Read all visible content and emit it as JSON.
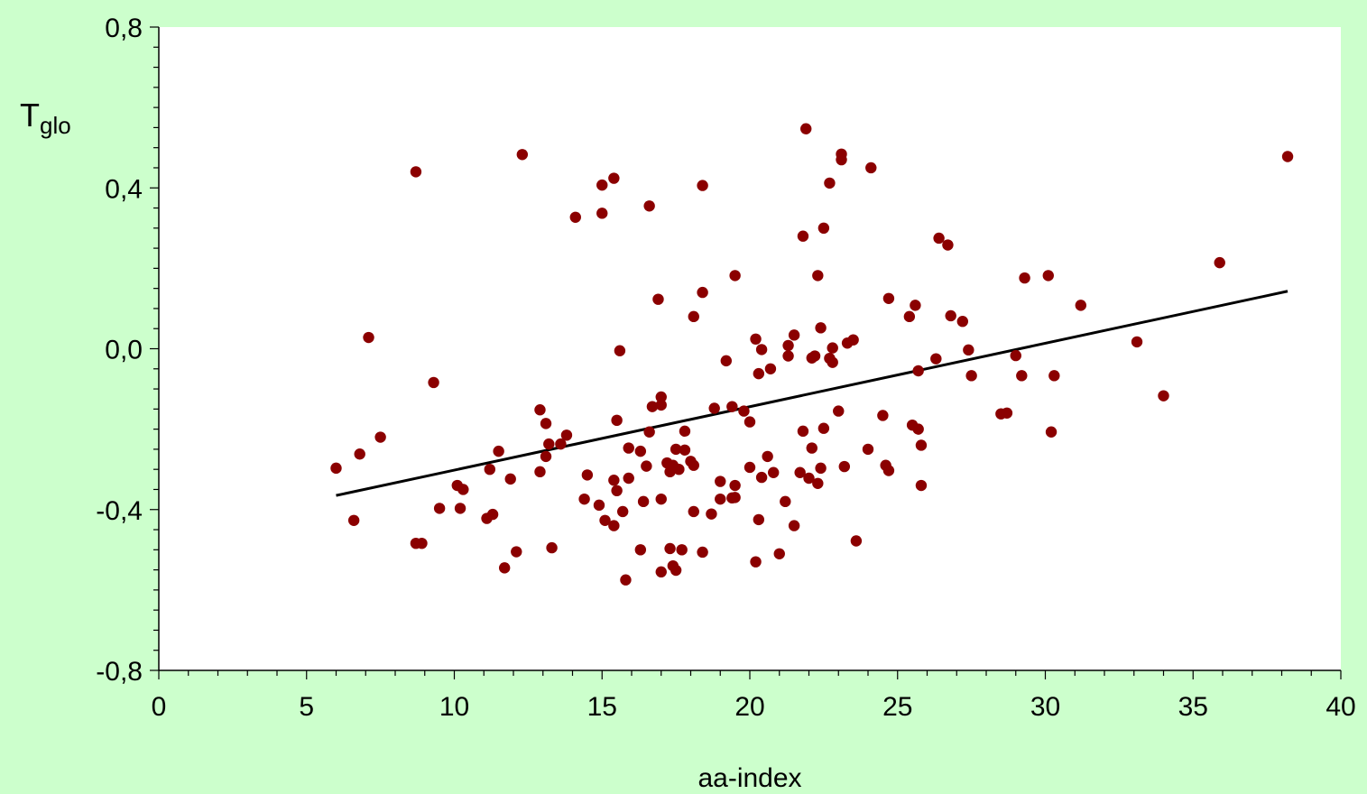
{
  "chart_data": {
    "type": "scatter",
    "xlabel": "aa-index",
    "ylabel_main": "T",
    "ylabel_sub": "glo",
    "xlim": [
      0,
      40
    ],
    "ylim": [
      -0.8,
      0.8
    ],
    "x_ticks": [
      0,
      5,
      10,
      15,
      20,
      25,
      30,
      35,
      40
    ],
    "x_tick_labels": [
      "0",
      "5",
      "10",
      "15",
      "20",
      "25",
      "30",
      "35",
      "40"
    ],
    "y_ticks": [
      -0.8,
      -0.4,
      0.0,
      0.4,
      0.8
    ],
    "y_tick_labels": [
      "-0,8",
      "-0,4",
      "0,0",
      "0,4",
      "0,8"
    ],
    "grid": false,
    "colors": {
      "point": "#8b0000",
      "trend": "#000000",
      "plot_bg": "#ffffff",
      "page_bg": "#ccffcc"
    },
    "trendline": {
      "x": [
        6.0,
        38.2
      ],
      "y": [
        -0.365,
        0.143
      ]
    },
    "points": [
      {
        "x": 6.0,
        "y": -0.297
      },
      {
        "x": 6.6,
        "y": -0.427
      },
      {
        "x": 6.8,
        "y": -0.262
      },
      {
        "x": 7.1,
        "y": 0.028
      },
      {
        "x": 7.5,
        "y": -0.22
      },
      {
        "x": 8.7,
        "y": 0.44
      },
      {
        "x": 8.7,
        "y": -0.484
      },
      {
        "x": 8.9,
        "y": -0.484
      },
      {
        "x": 9.3,
        "y": -0.084
      },
      {
        "x": 9.5,
        "y": -0.397
      },
      {
        "x": 10.1,
        "y": -0.34
      },
      {
        "x": 10.2,
        "y": -0.397
      },
      {
        "x": 10.3,
        "y": -0.35
      },
      {
        "x": 11.1,
        "y": -0.422
      },
      {
        "x": 11.2,
        "y": -0.3
      },
      {
        "x": 11.3,
        "y": -0.412
      },
      {
        "x": 11.5,
        "y": -0.255
      },
      {
        "x": 11.7,
        "y": -0.545
      },
      {
        "x": 11.9,
        "y": -0.324
      },
      {
        "x": 12.1,
        "y": -0.505
      },
      {
        "x": 12.3,
        "y": 0.483
      },
      {
        "x": 12.9,
        "y": -0.152
      },
      {
        "x": 12.9,
        "y": -0.306
      },
      {
        "x": 13.1,
        "y": -0.186
      },
      {
        "x": 13.1,
        "y": -0.268
      },
      {
        "x": 13.2,
        "y": -0.237
      },
      {
        "x": 13.3,
        "y": -0.495
      },
      {
        "x": 13.6,
        "y": -0.237
      },
      {
        "x": 13.8,
        "y": -0.215
      },
      {
        "x": 14.1,
        "y": 0.327
      },
      {
        "x": 14.4,
        "y": -0.374
      },
      {
        "x": 14.5,
        "y": -0.314
      },
      {
        "x": 14.9,
        "y": -0.389
      },
      {
        "x": 15.0,
        "y": 0.337
      },
      {
        "x": 15.0,
        "y": 0.407
      },
      {
        "x": 15.1,
        "y": -0.427
      },
      {
        "x": 15.4,
        "y": 0.424
      },
      {
        "x": 15.4,
        "y": -0.327
      },
      {
        "x": 15.4,
        "y": -0.44
      },
      {
        "x": 15.5,
        "y": -0.178
      },
      {
        "x": 15.5,
        "y": -0.353
      },
      {
        "x": 15.6,
        "y": -0.005
      },
      {
        "x": 15.7,
        "y": -0.405
      },
      {
        "x": 15.8,
        "y": -0.575
      },
      {
        "x": 15.9,
        "y": -0.322
      },
      {
        "x": 15.9,
        "y": -0.247
      },
      {
        "x": 16.3,
        "y": -0.255
      },
      {
        "x": 16.3,
        "y": -0.5
      },
      {
        "x": 16.4,
        "y": -0.38
      },
      {
        "x": 16.5,
        "y": -0.292
      },
      {
        "x": 16.6,
        "y": 0.355
      },
      {
        "x": 16.6,
        "y": -0.207
      },
      {
        "x": 16.7,
        "y": -0.144
      },
      {
        "x": 16.9,
        "y": 0.123
      },
      {
        "x": 17.0,
        "y": -0.12
      },
      {
        "x": 17.0,
        "y": -0.14
      },
      {
        "x": 17.0,
        "y": -0.374
      },
      {
        "x": 17.0,
        "y": -0.555
      },
      {
        "x": 17.2,
        "y": -0.284
      },
      {
        "x": 17.3,
        "y": -0.306
      },
      {
        "x": 17.3,
        "y": -0.497
      },
      {
        "x": 17.4,
        "y": -0.29
      },
      {
        "x": 17.4,
        "y": -0.54
      },
      {
        "x": 17.5,
        "y": -0.25
      },
      {
        "x": 17.5,
        "y": -0.551
      },
      {
        "x": 17.6,
        "y": -0.3
      },
      {
        "x": 17.7,
        "y": -0.5
      },
      {
        "x": 17.8,
        "y": -0.252
      },
      {
        "x": 17.8,
        "y": -0.205
      },
      {
        "x": 18.0,
        "y": -0.28
      },
      {
        "x": 18.1,
        "y": -0.29
      },
      {
        "x": 18.1,
        "y": 0.08
      },
      {
        "x": 18.1,
        "y": -0.405
      },
      {
        "x": 18.4,
        "y": 0.406
      },
      {
        "x": 18.4,
        "y": 0.14
      },
      {
        "x": 18.4,
        "y": -0.506
      },
      {
        "x": 18.7,
        "y": -0.411
      },
      {
        "x": 18.8,
        "y": -0.148
      },
      {
        "x": 19.0,
        "y": -0.374
      },
      {
        "x": 19.0,
        "y": -0.33
      },
      {
        "x": 19.2,
        "y": -0.03
      },
      {
        "x": 19.4,
        "y": -0.144
      },
      {
        "x": 19.4,
        "y": -0.371
      },
      {
        "x": 19.5,
        "y": 0.182
      },
      {
        "x": 19.5,
        "y": -0.37
      },
      {
        "x": 19.5,
        "y": -0.34
      },
      {
        "x": 19.8,
        "y": -0.155
      },
      {
        "x": 20.0,
        "y": -0.182
      },
      {
        "x": 20.0,
        "y": -0.295
      },
      {
        "x": 20.2,
        "y": -0.53
      },
      {
        "x": 20.2,
        "y": 0.024
      },
      {
        "x": 20.3,
        "y": -0.425
      },
      {
        "x": 20.3,
        "y": -0.062
      },
      {
        "x": 20.4,
        "y": -0.002
      },
      {
        "x": 20.4,
        "y": -0.32
      },
      {
        "x": 20.6,
        "y": -0.268
      },
      {
        "x": 20.7,
        "y": -0.05
      },
      {
        "x": 20.8,
        "y": -0.308
      },
      {
        "x": 21.0,
        "y": -0.51
      },
      {
        "x": 21.2,
        "y": -0.38
      },
      {
        "x": 21.3,
        "y": 0.008
      },
      {
        "x": 21.3,
        "y": -0.018
      },
      {
        "x": 21.5,
        "y": 0.034
      },
      {
        "x": 21.5,
        "y": -0.44
      },
      {
        "x": 21.7,
        "y": -0.308
      },
      {
        "x": 21.8,
        "y": 0.28
      },
      {
        "x": 21.8,
        "y": -0.205
      },
      {
        "x": 21.9,
        "y": 0.547
      },
      {
        "x": 22.0,
        "y": -0.322
      },
      {
        "x": 22.1,
        "y": -0.023
      },
      {
        "x": 22.1,
        "y": -0.247
      },
      {
        "x": 22.2,
        "y": -0.018
      },
      {
        "x": 22.3,
        "y": 0.182
      },
      {
        "x": 22.3,
        "y": -0.335
      },
      {
        "x": 22.4,
        "y": 0.052
      },
      {
        "x": 22.4,
        "y": -0.297
      },
      {
        "x": 22.5,
        "y": 0.3
      },
      {
        "x": 22.5,
        "y": -0.198
      },
      {
        "x": 22.7,
        "y": 0.412
      },
      {
        "x": 22.7,
        "y": -0.024
      },
      {
        "x": 22.8,
        "y": -0.034
      },
      {
        "x": 22.8,
        "y": 0.002
      },
      {
        "x": 23.0,
        "y": -0.155
      },
      {
        "x": 23.1,
        "y": 0.47
      },
      {
        "x": 23.1,
        "y": 0.484
      },
      {
        "x": 23.2,
        "y": -0.293
      },
      {
        "x": 23.3,
        "y": 0.014
      },
      {
        "x": 23.5,
        "y": 0.022
      },
      {
        "x": 23.6,
        "y": -0.478
      },
      {
        "x": 24.0,
        "y": -0.25
      },
      {
        "x": 24.1,
        "y": 0.45
      },
      {
        "x": 24.5,
        "y": -0.166
      },
      {
        "x": 24.6,
        "y": -0.29
      },
      {
        "x": 24.7,
        "y": 0.125
      },
      {
        "x": 24.7,
        "y": -0.303
      },
      {
        "x": 25.4,
        "y": 0.08
      },
      {
        "x": 25.5,
        "y": -0.19
      },
      {
        "x": 25.6,
        "y": 0.108
      },
      {
        "x": 25.7,
        "y": -0.2
      },
      {
        "x": 25.7,
        "y": -0.055
      },
      {
        "x": 25.8,
        "y": -0.24
      },
      {
        "x": 25.8,
        "y": -0.34
      },
      {
        "x": 26.3,
        "y": -0.025
      },
      {
        "x": 26.4,
        "y": 0.275
      },
      {
        "x": 26.7,
        "y": 0.258
      },
      {
        "x": 26.8,
        "y": 0.082
      },
      {
        "x": 27.2,
        "y": 0.068
      },
      {
        "x": 27.4,
        "y": -0.003
      },
      {
        "x": 27.5,
        "y": -0.067
      },
      {
        "x": 28.5,
        "y": -0.162
      },
      {
        "x": 28.7,
        "y": -0.16
      },
      {
        "x": 29.0,
        "y": -0.017
      },
      {
        "x": 29.2,
        "y": -0.067
      },
      {
        "x": 29.3,
        "y": 0.176
      },
      {
        "x": 30.1,
        "y": 0.182
      },
      {
        "x": 30.2,
        "y": -0.207
      },
      {
        "x": 30.3,
        "y": -0.067
      },
      {
        "x": 31.2,
        "y": 0.108
      },
      {
        "x": 33.1,
        "y": 0.017
      },
      {
        "x": 34.0,
        "y": -0.117
      },
      {
        "x": 35.9,
        "y": 0.214
      },
      {
        "x": 38.2,
        "y": 0.478
      }
    ]
  }
}
